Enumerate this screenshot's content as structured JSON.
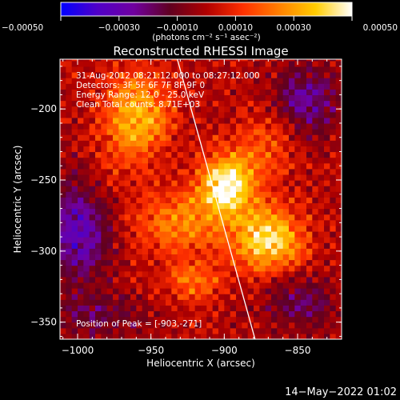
{
  "chart_data": {
    "type": "heatmap",
    "title": "Reconstructed RHESSI Image",
    "xlabel": "Heliocentric X (arcsec)",
    "ylabel": "Heliocentric Y (arcsec)",
    "xlim": [
      -1012,
      -820
    ],
    "ylim": [
      -362,
      -165
    ],
    "x_ticks": [
      -1000,
      -950,
      -900,
      -850
    ],
    "y_ticks": [
      -200,
      -250,
      -300,
      -350
    ],
    "x_tick_labels": [
      "−1000",
      "−950",
      "−900",
      "−850"
    ],
    "y_tick_labels": [
      "−200",
      "−250",
      "−300",
      "−350"
    ],
    "colorbar": {
      "range": [
        -0.0005,
        0.0005
      ],
      "ticks": [
        -0.0005,
        -0.0003,
        -0.0001,
        0.0001,
        0.0003,
        0.0005
      ],
      "tick_labels": [
        "−0.00050",
        "−0.00030",
        "−0.00010",
        "0.00010",
        "0.00030",
        "0.00050"
      ],
      "unit_label": "(photons cm⁻² s⁻¹ asec⁻²)",
      "colors": [
        "#0000ff",
        "#5000c8",
        "#7000a0",
        "#600020",
        "#b00000",
        "#ff3000",
        "#ff8000",
        "#ffcc00",
        "#ffffff"
      ]
    },
    "info_lines": [
      "31-Aug-2012 08:21:12.000 to 08:27:12.000",
      "Detectors: 3F 5F 6F 7F 8F 9F 0",
      "Energy Range: 12.0 - 25.0 keV",
      "Clean    Total counts: 8.71E+03"
    ],
    "peak_label": "Position of Peak = [-903,-271]",
    "peak": [
      -903,
      -271
    ],
    "limb_line": [
      [
        -932,
        -165
      ],
      [
        -879,
        -362
      ]
    ],
    "sources": [
      {
        "x": -898,
        "y": -252,
        "amp": 1.0,
        "sx": 13,
        "sy": 15
      },
      {
        "x": -870,
        "y": -292,
        "amp": 0.85,
        "sx": 17,
        "sy": 16
      },
      {
        "x": -960,
        "y": -205,
        "amp": 0.7,
        "sx": 16,
        "sy": 22
      },
      {
        "x": -930,
        "y": -280,
        "amp": 0.5,
        "sx": 24,
        "sy": 16
      },
      {
        "x": -868,
        "y": -222,
        "amp": 0.35,
        "sx": 15,
        "sy": 17
      },
      {
        "x": -922,
        "y": -322,
        "amp": 0.4,
        "sx": 14,
        "sy": 10
      },
      {
        "x": -980,
        "y": -250,
        "amp": 0.12,
        "sx": 10,
        "sy": 14
      },
      {
        "x": -1000,
        "y": -285,
        "amp": -0.65,
        "sx": 16,
        "sy": 24
      },
      {
        "x": -845,
        "y": -195,
        "amp": -0.5,
        "sx": 16,
        "sy": 18
      },
      {
        "x": -848,
        "y": -335,
        "amp": -0.35,
        "sx": 18,
        "sy": 14
      },
      {
        "x": -985,
        "y": -345,
        "amp": -0.3,
        "sx": 20,
        "sy": 12
      }
    ]
  },
  "timestamp": "14−May−2022 01:02"
}
